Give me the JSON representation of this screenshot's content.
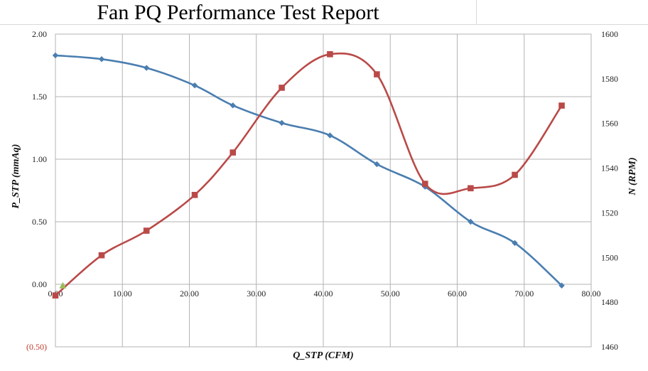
{
  "title": "Fan PQ Performance Test Report",
  "colors": {
    "pressure": "#4a7eb0",
    "rpm": "#b94a48",
    "marker_extra": "#9bbb59",
    "grid": "#b3b3b3",
    "neg_tick": "#c0392b"
  },
  "chart_data": {
    "type": "line",
    "xlabel": "Q_STP (CFM)",
    "ylabel": "P_STP (mmAq)",
    "y2label": "N (RPM)",
    "xlim": [
      0,
      80
    ],
    "ylim": [
      -0.5,
      2.0
    ],
    "y2lim": [
      1460,
      1600
    ],
    "x_ticks": [
      "0.00",
      "10.00",
      "20.00",
      "30.00",
      "40.00",
      "50.00",
      "60.00",
      "70.00",
      "80.00"
    ],
    "y_ticks": [
      "(0.50)",
      "0.00",
      "0.50",
      "1.00",
      "1.50",
      "2.00"
    ],
    "y2_ticks": [
      "1460",
      "1480",
      "1500",
      "1520",
      "1540",
      "1560",
      "1580",
      "1600"
    ],
    "grid": true,
    "series": [
      {
        "axis": "left",
        "marker": "diamond",
        "points": [
          [
            0.0,
            1.83
          ],
          [
            6.9,
            1.8
          ],
          [
            13.6,
            1.73
          ],
          [
            20.8,
            1.59
          ],
          [
            26.5,
            1.43
          ],
          [
            33.8,
            1.29
          ],
          [
            41.0,
            1.19
          ],
          [
            48.0,
            0.96
          ],
          [
            55.2,
            0.78
          ],
          [
            62.0,
            0.5
          ],
          [
            68.6,
            0.33
          ],
          [
            75.6,
            -0.01
          ]
        ]
      },
      {
        "axis": "right",
        "marker": "square",
        "points": [
          [
            0.0,
            1483
          ],
          [
            6.9,
            1501
          ],
          [
            13.6,
            1512
          ],
          [
            20.8,
            1528
          ],
          [
            26.5,
            1547
          ],
          [
            33.8,
            1576
          ],
          [
            41.0,
            1591
          ],
          [
            48.0,
            1582
          ],
          [
            55.2,
            1533
          ],
          [
            62.0,
            1531
          ],
          [
            68.6,
            1537
          ],
          [
            75.6,
            1568
          ]
        ]
      },
      {
        "axis": "left",
        "marker": "triangle",
        "points": [
          [
            1.1,
            -0.01
          ]
        ]
      }
    ]
  }
}
